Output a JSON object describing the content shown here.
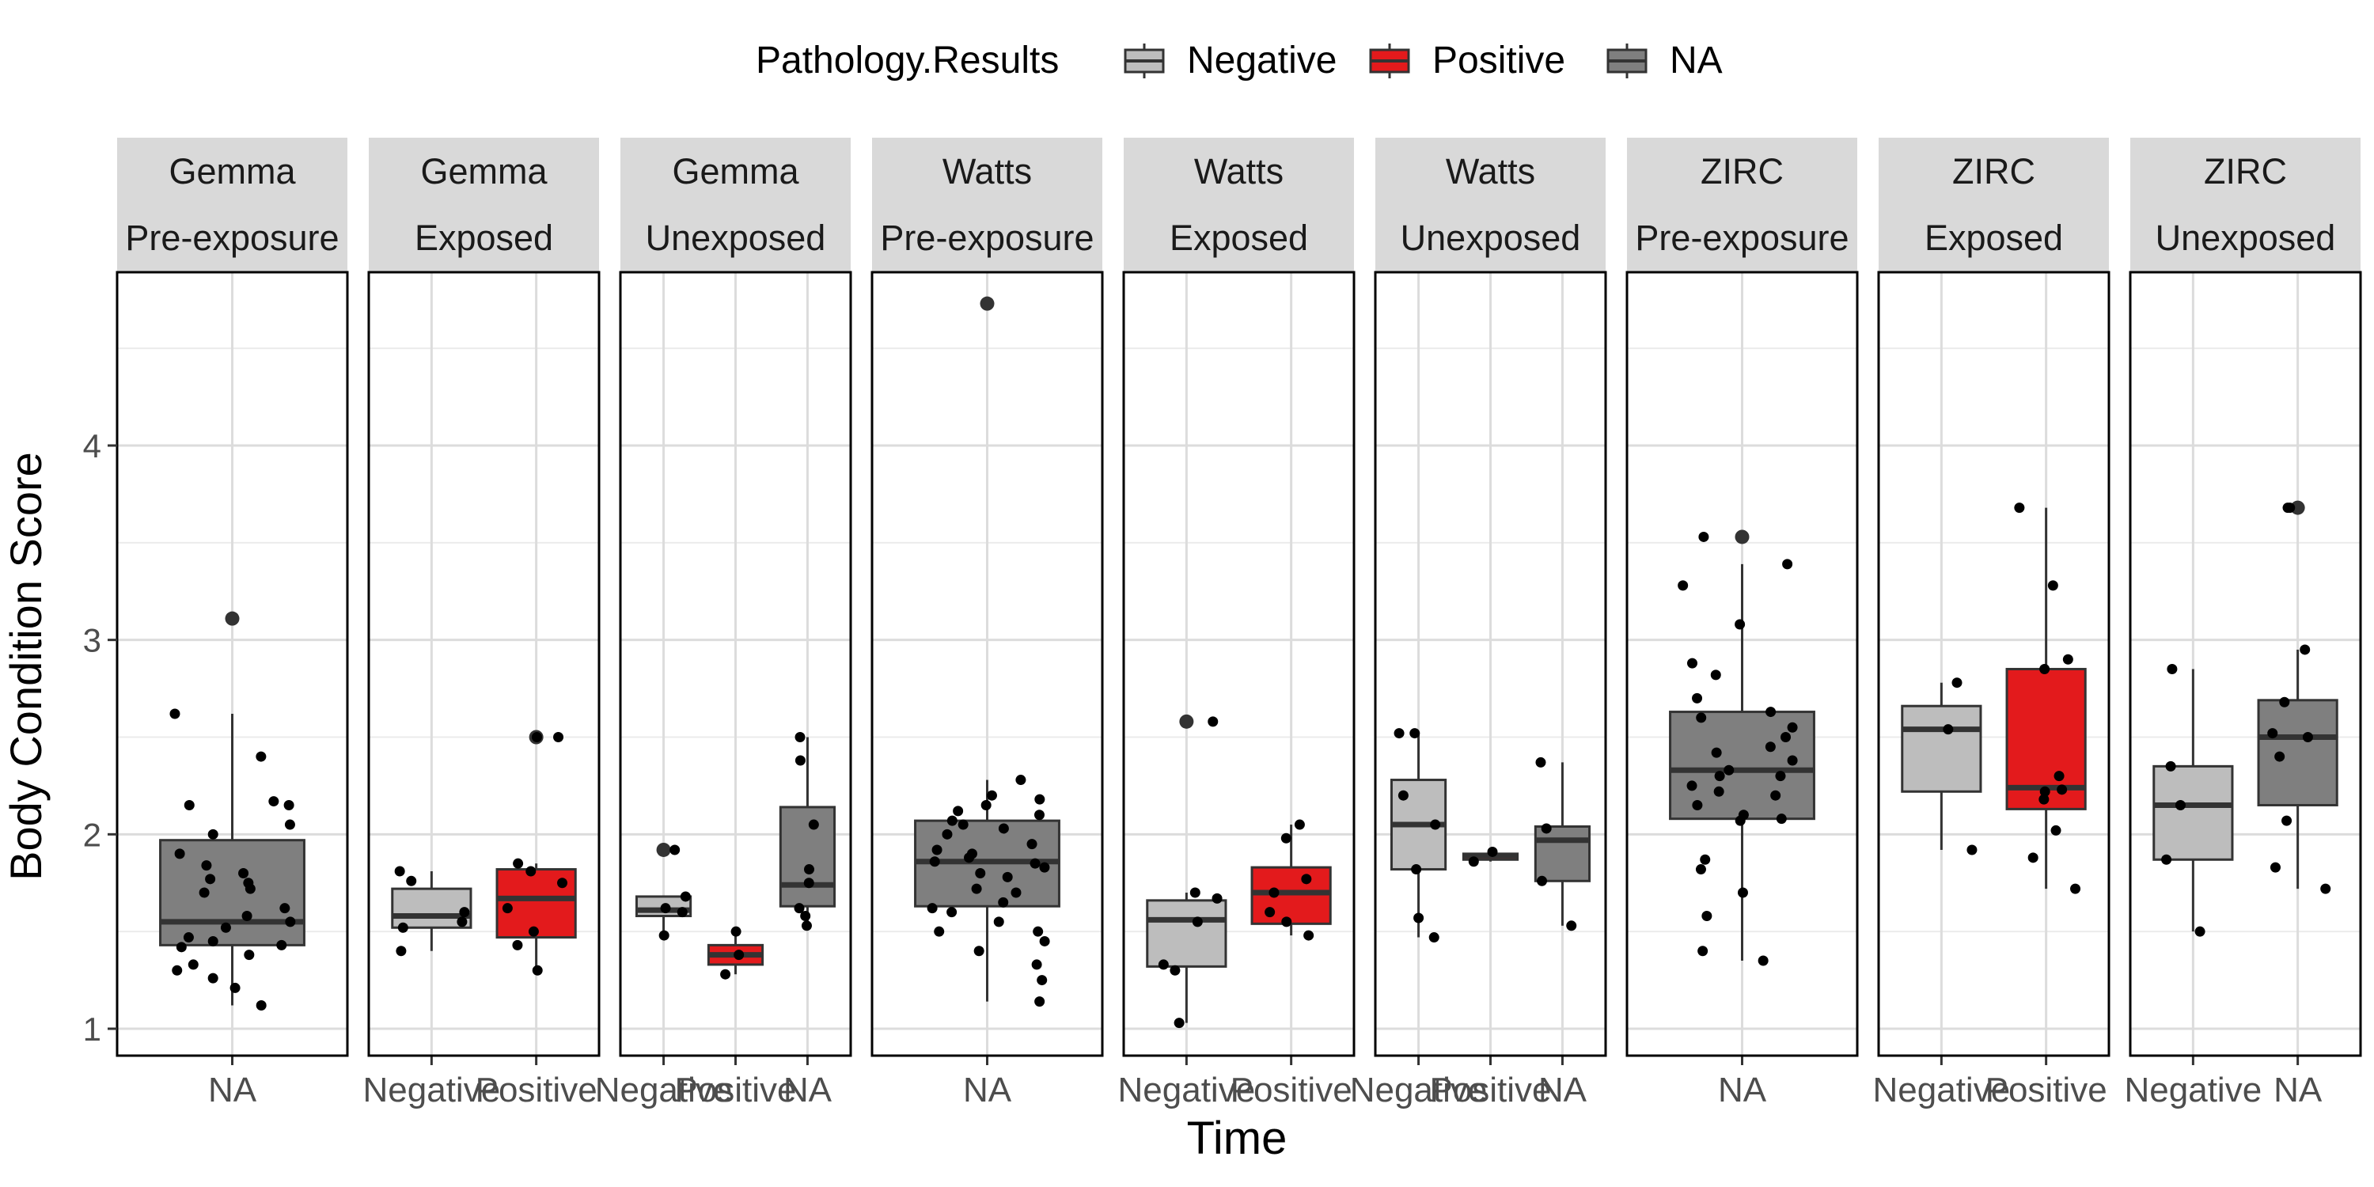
{
  "chart_data": {
    "type": "box",
    "xlabel": "Time",
    "ylabel": "Body Condition Score",
    "ylim": [
      0.85,
      4.95
    ],
    "yticks": [
      1,
      2,
      3,
      4
    ],
    "grid": true,
    "legend": {
      "title": "Pathology.Results",
      "position": "top",
      "entries": [
        {
          "label": "Negative",
          "color": "#bdbdbd"
        },
        {
          "label": "Positive",
          "color": "#e31a1c"
        },
        {
          "label": "NA",
          "color": "#7f7f7f"
        }
      ]
    },
    "panels": [
      {
        "line1": "Gemma",
        "line2": "Pre-exposure",
        "boxes": [
          {
            "label": "NA",
            "group": "NA",
            "whisker_low": 1.12,
            "q1": 1.43,
            "median": 1.55,
            "q3": 1.97,
            "whisker_high": 2.62,
            "outliers": [
              3.11
            ],
            "points": [
              1.12,
              1.21,
              1.26,
              1.3,
              1.33,
              1.38,
              1.42,
              1.43,
              1.45,
              1.47,
              1.52,
              1.55,
              1.58,
              1.62,
              1.7,
              1.72,
              1.75,
              1.77,
              1.8,
              1.84,
              1.9,
              2.0,
              2.05,
              2.15,
              2.15,
              2.17,
              2.4,
              2.62
            ]
          }
        ]
      },
      {
        "line1": "Gemma",
        "line2": "Exposed",
        "boxes": [
          {
            "label": "Negative",
            "group": "Negative",
            "whisker_low": 1.4,
            "q1": 1.52,
            "median": 1.58,
            "q3": 1.72,
            "whisker_high": 1.81,
            "outliers": [],
            "points": [
              1.4,
              1.52,
              1.55,
              1.6,
              1.76,
              1.81
            ]
          },
          {
            "label": "Positive",
            "group": "Positive",
            "whisker_low": 1.3,
            "q1": 1.47,
            "median": 1.67,
            "q3": 1.82,
            "whisker_high": 1.85,
            "outliers": [
              2.5
            ],
            "points": [
              1.3,
              1.43,
              1.5,
              1.62,
              1.75,
              1.81,
              1.85,
              2.5,
              2.5
            ]
          }
        ]
      },
      {
        "line1": "Gemma",
        "line2": "Unexposed",
        "boxes": [
          {
            "label": "Negative",
            "group": "Negative",
            "whisker_low": 1.48,
            "q1": 1.58,
            "median": 1.61,
            "q3": 1.68,
            "whisker_high": 1.68,
            "outliers": [
              1.92
            ],
            "points": [
              1.48,
              1.6,
              1.62,
              1.68,
              1.92
            ]
          },
          {
            "label": "Positive",
            "group": "Positive",
            "whisker_low": 1.28,
            "q1": 1.33,
            "median": 1.38,
            "q3": 1.43,
            "whisker_high": 1.5,
            "outliers": [],
            "points": [
              1.28,
              1.38,
              1.5
            ]
          },
          {
            "label": "NA",
            "group": "NA",
            "whisker_low": 1.53,
            "q1": 1.63,
            "median": 1.74,
            "q3": 2.14,
            "whisker_high": 2.5,
            "outliers": [],
            "points": [
              1.53,
              1.58,
              1.62,
              1.75,
              1.82,
              2.05,
              2.38,
              2.5
            ]
          }
        ]
      },
      {
        "line1": "Watts",
        "line2": "Pre-exposure",
        "boxes": [
          {
            "label": "NA",
            "group": "NA",
            "whisker_low": 1.14,
            "q1": 1.63,
            "median": 1.86,
            "q3": 2.07,
            "whisker_high": 2.28,
            "outliers": [
              4.73
            ],
            "points": [
              1.14,
              1.25,
              1.33,
              1.4,
              1.45,
              1.5,
              1.5,
              1.55,
              1.6,
              1.62,
              1.65,
              1.7,
              1.72,
              1.78,
              1.8,
              1.83,
              1.85,
              1.86,
              1.88,
              1.9,
              1.92,
              1.95,
              2.0,
              2.03,
              2.05,
              2.07,
              2.1,
              2.12,
              2.15,
              2.18,
              2.2,
              2.28
            ]
          }
        ]
      },
      {
        "line1": "Watts",
        "line2": "Exposed",
        "boxes": [
          {
            "label": "Negative",
            "group": "Negative",
            "whisker_low": 1.03,
            "q1": 1.32,
            "median": 1.56,
            "q3": 1.66,
            "whisker_high": 1.7,
            "outliers": [
              2.58
            ],
            "points": [
              1.03,
              1.3,
              1.33,
              1.55,
              1.67,
              1.7,
              2.58
            ]
          },
          {
            "label": "Positive",
            "group": "Positive",
            "whisker_low": 1.48,
            "q1": 1.54,
            "median": 1.7,
            "q3": 1.83,
            "whisker_high": 2.05,
            "outliers": [],
            "points": [
              1.48,
              1.55,
              1.6,
              1.7,
              1.77,
              1.98,
              2.05
            ]
          }
        ]
      },
      {
        "line1": "Watts",
        "line2": "Unexposed",
        "boxes": [
          {
            "label": "Negative",
            "group": "Negative",
            "whisker_low": 1.47,
            "q1": 1.82,
            "median": 2.05,
            "q3": 2.28,
            "whisker_high": 2.52,
            "outliers": [],
            "points": [
              1.47,
              1.57,
              1.82,
              2.05,
              2.2,
              2.52,
              2.52
            ]
          },
          {
            "label": "Positive",
            "group": "Positive",
            "whisker_low": 1.86,
            "q1": 1.87,
            "median": 1.89,
            "q3": 1.9,
            "whisker_high": 1.91,
            "outliers": [],
            "points": [
              1.86,
              1.91
            ]
          },
          {
            "label": "NA",
            "group": "NA",
            "whisker_low": 1.53,
            "q1": 1.76,
            "median": 1.97,
            "q3": 2.04,
            "whisker_high": 2.37,
            "outliers": [],
            "points": [
              1.53,
              1.76,
              2.03,
              2.37
            ]
          }
        ]
      },
      {
        "line1": "ZIRC",
        "line2": "Pre-exposure",
        "boxes": [
          {
            "label": "NA",
            "group": "NA",
            "whisker_low": 1.35,
            "q1": 2.08,
            "median": 2.33,
            "q3": 2.63,
            "whisker_high": 3.39,
            "outliers": [
              3.53
            ],
            "points": [
              1.35,
              1.4,
              1.58,
              1.7,
              1.82,
              1.87,
              2.07,
              2.08,
              2.1,
              2.15,
              2.2,
              2.22,
              2.25,
              2.3,
              2.3,
              2.33,
              2.38,
              2.42,
              2.45,
              2.5,
              2.55,
              2.6,
              2.63,
              2.7,
              2.82,
              2.88,
              3.08,
              3.28,
              3.39,
              3.53
            ]
          }
        ]
      },
      {
        "line1": "ZIRC",
        "line2": "Exposed",
        "boxes": [
          {
            "label": "Negative",
            "group": "Negative",
            "whisker_low": 1.92,
            "q1": 2.22,
            "median": 2.54,
            "q3": 2.66,
            "whisker_high": 2.78,
            "outliers": [],
            "points": [
              1.92,
              2.54,
              2.78
            ]
          },
          {
            "label": "Positive",
            "group": "Positive",
            "whisker_low": 1.72,
            "q1": 2.13,
            "median": 2.24,
            "q3": 2.85,
            "whisker_high": 3.68,
            "outliers": [],
            "points": [
              1.72,
              1.88,
              2.02,
              2.18,
              2.22,
              2.23,
              2.3,
              2.85,
              2.9,
              3.28,
              3.68
            ]
          }
        ]
      },
      {
        "line1": "ZIRC",
        "line2": "Unexposed",
        "boxes": [
          {
            "label": "Negative",
            "group": "Negative",
            "whisker_low": 1.5,
            "q1": 1.87,
            "median": 2.15,
            "q3": 2.35,
            "whisker_high": 2.85,
            "outliers": [],
            "points": [
              1.5,
              1.87,
              2.15,
              2.35,
              2.85
            ]
          },
          {
            "label": "NA",
            "group": "NA",
            "whisker_low": 1.72,
            "q1": 2.15,
            "median": 2.5,
            "q3": 2.69,
            "whisker_high": 2.95,
            "outliers": [
              3.68
            ],
            "points": [
              1.72,
              1.83,
              2.07,
              2.4,
              2.5,
              2.52,
              2.68,
              2.95,
              3.68,
              3.68
            ]
          }
        ]
      }
    ]
  }
}
